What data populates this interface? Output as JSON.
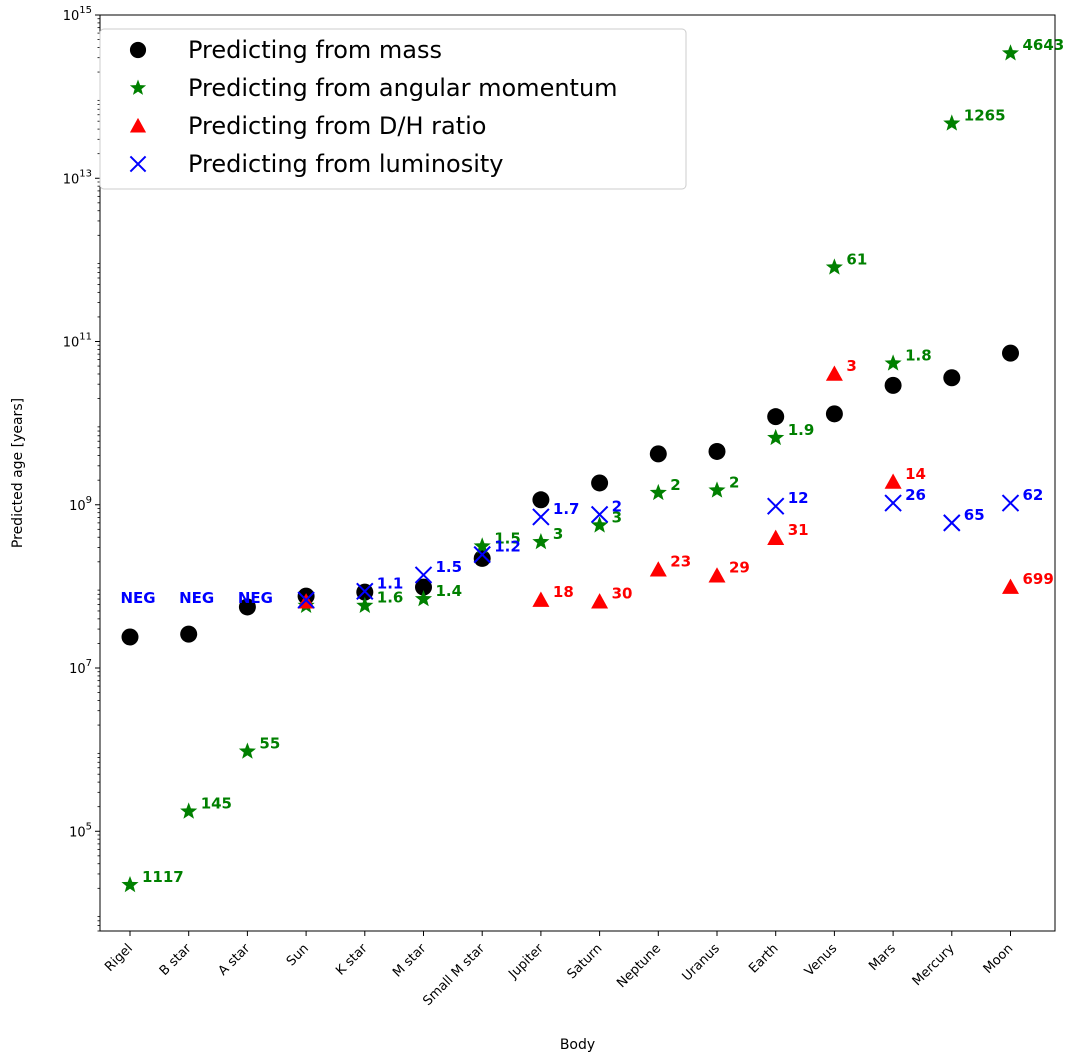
{
  "chart_data": {
    "type": "scatter",
    "title": "",
    "xlabel": "Body",
    "ylabel": "Predicted age [years]",
    "yscale": "log",
    "ylim": [
      6000.0,
      1000000000000000.0
    ],
    "categories": [
      "Rigel",
      "B star",
      "A star",
      "Sun",
      "K star",
      "M star",
      "Small M star",
      "Jupiter",
      "Saturn",
      "Neptune",
      "Uranus",
      "Earth",
      "Venus",
      "Mars",
      "Mercury",
      "Moon"
    ],
    "yticks": [
      {
        "value": 100000.0,
        "base": "10",
        "exp": "5"
      },
      {
        "value": 10000000.0,
        "base": "10",
        "exp": "7"
      },
      {
        "value": 1000000000.0,
        "base": "10",
        "exp": "9"
      },
      {
        "value": 100000000000.0,
        "base": "10",
        "exp": "11"
      },
      {
        "value": 10000000000000.0,
        "base": "10",
        "exp": "13"
      },
      {
        "value": 1000000000000000.0,
        "base": "10",
        "exp": "15"
      }
    ],
    "grid": false,
    "legend_position": "top-left",
    "series": [
      {
        "name": "Predicting from mass",
        "marker": "circle",
        "color": "#000000",
        "points": [
          {
            "x": "Rigel",
            "y": 24000000.0
          },
          {
            "x": "B star",
            "y": 26000000.0
          },
          {
            "x": "A star",
            "y": 56000000.0
          },
          {
            "x": "Sun",
            "y": 76000000.0
          },
          {
            "x": "K star",
            "y": 85000000.0
          },
          {
            "x": "M star",
            "y": 98000000.0
          },
          {
            "x": "Small M star",
            "y": 220000000.0
          },
          {
            "x": "Jupiter",
            "y": 1150000000.0
          },
          {
            "x": "Saturn",
            "y": 1850000000.0
          },
          {
            "x": "Neptune",
            "y": 4200000000.0
          },
          {
            "x": "Uranus",
            "y": 4500000000.0
          },
          {
            "x": "Earth",
            "y": 12000000000.0
          },
          {
            "x": "Venus",
            "y": 13000000000.0
          },
          {
            "x": "Mars",
            "y": 29000000000.0
          },
          {
            "x": "Mercury",
            "y": 36000000000.0
          },
          {
            "x": "Moon",
            "y": 72000000000.0
          }
        ]
      },
      {
        "name": "Predicting from angular momentum",
        "marker": "star",
        "color": "#008000",
        "points": [
          {
            "x": "Rigel",
            "y": 22000.0,
            "label": "1117"
          },
          {
            "x": "B star",
            "y": 175000.0,
            "label": "145"
          },
          {
            "x": "A star",
            "y": 950000.0,
            "label": "55"
          },
          {
            "x": "Sun",
            "y": 58000000.0
          },
          {
            "x": "K star",
            "y": 58000000.0,
            "label": "1.6"
          },
          {
            "x": "M star",
            "y": 70000000.0,
            "label": "1.4"
          },
          {
            "x": "Small M star",
            "y": 310000000.0,
            "label": "1.5"
          },
          {
            "x": "Jupiter",
            "y": 350000000.0,
            "label": "3"
          },
          {
            "x": "Saturn",
            "y": 560000000.0,
            "label": "3"
          },
          {
            "x": "Neptune",
            "y": 1400000000.0,
            "label": "2"
          },
          {
            "x": "Uranus",
            "y": 1500000000.0,
            "label": "2"
          },
          {
            "x": "Earth",
            "y": 6600000000.0,
            "label": "1.9"
          },
          {
            "x": "Venus",
            "y": 810000000000.0,
            "label": "61"
          },
          {
            "x": "Mars",
            "y": 54000000000.0,
            "label": "1.8"
          },
          {
            "x": "Mercury",
            "y": 47000000000000.0,
            "label": "1265"
          },
          {
            "x": "Moon",
            "y": 340000000000000.0,
            "label": "4643"
          }
        ]
      },
      {
        "name": "Predicting from D/H ratio",
        "marker": "triangle",
        "color": "#ff0000",
        "points": [
          {
            "x": "Sun",
            "y": 65000000.0
          },
          {
            "x": "Jupiter",
            "y": 68000000.0,
            "label": "18"
          },
          {
            "x": "Saturn",
            "y": 65000000.0,
            "label": "30"
          },
          {
            "x": "Neptune",
            "y": 160000000.0,
            "label": "23"
          },
          {
            "x": "Uranus",
            "y": 135000000.0,
            "label": "29"
          },
          {
            "x": "Earth",
            "y": 390000000.0,
            "label": "31"
          },
          {
            "x": "Venus",
            "y": 40000000000.0,
            "label": "3"
          },
          {
            "x": "Mars",
            "y": 1900000000.0,
            "label": "14"
          },
          {
            "x": "Moon",
            "y": 98000000.0,
            "label": "699"
          }
        ]
      },
      {
        "name": "Predicting from luminosity",
        "marker": "x",
        "color": "#0000ff",
        "points": [
          {
            "x": "Rigel",
            "y": 72000000.0,
            "label": "NEG",
            "label_only": true
          },
          {
            "x": "B star",
            "y": 72000000.0,
            "label": "NEG",
            "label_only": true
          },
          {
            "x": "A star",
            "y": 72000000.0,
            "label": "NEG",
            "label_only": true
          },
          {
            "x": "Sun",
            "y": 68000000.0
          },
          {
            "x": "K star",
            "y": 87000000.0,
            "label": "1.1"
          },
          {
            "x": "M star",
            "y": 138000000.0,
            "label": "1.5"
          },
          {
            "x": "Small M star",
            "y": 245000000.0,
            "label": "1.2"
          },
          {
            "x": "Jupiter",
            "y": 710000000.0,
            "label": "1.7"
          },
          {
            "x": "Saturn",
            "y": 760000000.0,
            "label": "2"
          },
          {
            "x": "Earth",
            "y": 960000000.0,
            "label": "12"
          },
          {
            "x": "Mars",
            "y": 1050000000.0,
            "label": "26"
          },
          {
            "x": "Mercury",
            "y": 600000000.0,
            "label": "65"
          },
          {
            "x": "Moon",
            "y": 1050000000.0,
            "label": "62"
          }
        ]
      }
    ]
  }
}
